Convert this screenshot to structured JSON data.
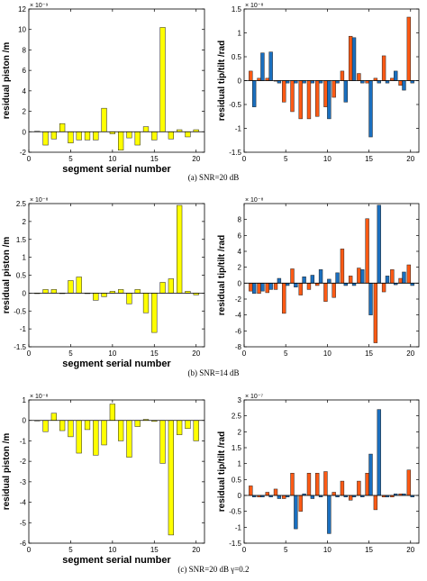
{
  "colors": {
    "yellow": "#ffff00",
    "orange": "#ff5a14",
    "blue": "#1a6fbf",
    "axis": "#000000"
  },
  "chart_data": [
    {
      "type": "bar",
      "row": 0,
      "col": 0,
      "xlabel": "segment serial number",
      "ylabel": "residual piston /m",
      "exponent": "× 10⁻⁹",
      "xlim": [
        0,
        21
      ],
      "xticks": [
        0,
        5,
        10,
        15,
        20
      ],
      "ylim": [
        -2,
        12
      ],
      "yticks": [
        -2,
        0,
        2,
        4,
        6,
        8,
        10,
        12
      ],
      "x": [
        1,
        2,
        3,
        4,
        5,
        6,
        7,
        8,
        9,
        10,
        11,
        12,
        13,
        14,
        15,
        16,
        17,
        18,
        19,
        20
      ],
      "series": [
        {
          "color": "yellow",
          "values": [
            0.05,
            -1.3,
            -0.7,
            0.8,
            -1.1,
            -0.8,
            -0.8,
            -0.8,
            2.3,
            -0.2,
            -1.8,
            -0.6,
            -1.3,
            0.5,
            -0.8,
            10.2,
            -0.7,
            0.2,
            -0.5,
            0.2
          ]
        }
      ]
    },
    {
      "type": "bar",
      "row": 0,
      "col": 1,
      "xlabel": "",
      "ylabel": "residual tip/tilt /rad",
      "exponent": "× 10⁻⁸",
      "xlim": [
        0,
        21
      ],
      "xticks": [
        0,
        5,
        10,
        15,
        20
      ],
      "ylim": [
        -1.5,
        1.5
      ],
      "yticks": [
        -1.5,
        -1,
        -0.5,
        0,
        0.5,
        1,
        1.5
      ],
      "x": [
        1,
        2,
        3,
        4,
        5,
        6,
        7,
        8,
        9,
        10,
        11,
        12,
        13,
        14,
        15,
        16,
        17,
        18,
        19,
        20
      ],
      "series": [
        {
          "color": "orange",
          "values": [
            0.2,
            0.05,
            0.05,
            0,
            -0.45,
            -0.65,
            -0.8,
            -0.8,
            -0.75,
            -0.55,
            -0.35,
            0.2,
            0.93,
            0.15,
            -0.05,
            0.05,
            0.52,
            0.05,
            -0.1,
            1.33
          ]
        },
        {
          "color": "blue",
          "values": [
            -0.55,
            0.58,
            0.6,
            -0.05,
            -0.05,
            -0.05,
            -0.05,
            -0.05,
            -0.05,
            -0.8,
            -0.05,
            -0.45,
            0.9,
            -0.05,
            -1.18,
            -0.05,
            -0.05,
            0.2,
            -0.2,
            -0.05
          ]
        }
      ]
    },
    {
      "type": "bar",
      "row": 1,
      "col": 0,
      "xlabel": "segment serial number",
      "ylabel": "residual piston /m",
      "exponent": "× 10⁻⁸",
      "xlim": [
        0,
        21
      ],
      "xticks": [
        0,
        5,
        10,
        15,
        20
      ],
      "ylim": [
        -1.5,
        2.5
      ],
      "yticks": [
        -1.5,
        -1,
        -0.5,
        0,
        0.5,
        1,
        1.5,
        2,
        2.5
      ],
      "x": [
        1,
        2,
        3,
        4,
        5,
        6,
        7,
        8,
        9,
        10,
        11,
        12,
        13,
        14,
        15,
        16,
        17,
        18,
        19,
        20
      ],
      "series": [
        {
          "color": "yellow",
          "values": [
            0,
            0.1,
            0.1,
            0,
            0.35,
            0.45,
            0,
            -0.2,
            -0.1,
            0.05,
            0.1,
            -0.3,
            0.1,
            -0.55,
            -1.1,
            0.3,
            0.4,
            2.45,
            0.05,
            -0.05
          ]
        }
      ]
    },
    {
      "type": "bar",
      "row": 1,
      "col": 1,
      "xlabel": "",
      "ylabel": "residual tip/tilt /rad",
      "exponent": "× 10⁻⁸",
      "xlim": [
        0,
        21
      ],
      "xticks": [
        0,
        5,
        10,
        15,
        20
      ],
      "ylim": [
        -8,
        10
      ],
      "yticks": [
        -8,
        -6,
        -4,
        -2,
        0,
        2,
        4,
        6,
        8
      ],
      "x": [
        1,
        2,
        3,
        4,
        5,
        6,
        7,
        8,
        9,
        10,
        11,
        12,
        13,
        14,
        15,
        16,
        17,
        18,
        19,
        20
      ],
      "series": [
        {
          "color": "orange",
          "values": [
            -1,
            -1.3,
            -1.2,
            -0.8,
            -3.8,
            1.8,
            -1.5,
            -0.8,
            -0.3,
            -2.3,
            -1.8,
            4.3,
            0.9,
            1.9,
            8.1,
            -7.5,
            -1.1,
            1.7,
            0.6,
            2.3
          ]
        },
        {
          "color": "blue",
          "values": [
            -1.3,
            -1,
            -0.8,
            0.6,
            -0.3,
            -0.5,
            0.8,
            1,
            1.7,
            0.5,
            1.3,
            -0.3,
            -0.3,
            1.7,
            -4,
            9.8,
            0.9,
            -0.2,
            1.4,
            -0.3
          ]
        }
      ]
    },
    {
      "type": "bar",
      "row": 2,
      "col": 0,
      "xlabel": "segment serial number",
      "ylabel": "residual piston /m",
      "exponent": "× 10⁻⁸",
      "xlim": [
        0,
        21
      ],
      "xticks": [
        0,
        5,
        10,
        15,
        20
      ],
      "ylim": [
        -6,
        1
      ],
      "yticks": [
        -6,
        -5,
        -4,
        -3,
        -2,
        -1,
        0,
        1
      ],
      "x": [
        1,
        2,
        3,
        4,
        5,
        6,
        7,
        8,
        9,
        10,
        11,
        12,
        13,
        14,
        15,
        16,
        17,
        18,
        19,
        20
      ],
      "series": [
        {
          "color": "yellow",
          "values": [
            0,
            -0.55,
            0.35,
            -0.5,
            -0.8,
            -1.6,
            -0.45,
            -1.7,
            -1.2,
            0.8,
            -1,
            -1.8,
            -0.3,
            0.05,
            -0.05,
            -2.1,
            -5.6,
            -0.7,
            -0.4,
            -1
          ]
        }
      ]
    },
    {
      "type": "bar",
      "row": 2,
      "col": 1,
      "xlabel": "",
      "ylabel": "residual tip/tilt /rad",
      "exponent": "× 10⁻⁷",
      "xlim": [
        0,
        21
      ],
      "xticks": [
        0,
        5,
        10,
        15,
        20
      ],
      "ylim": [
        -1.5,
        3
      ],
      "yticks": [
        -1.5,
        -1,
        -0.5,
        0,
        0.5,
        1,
        1.5,
        2,
        2.5,
        3
      ],
      "x": [
        1,
        2,
        3,
        4,
        5,
        6,
        7,
        8,
        9,
        10,
        11,
        12,
        13,
        14,
        15,
        16,
        17,
        18,
        19,
        20
      ],
      "series": [
        {
          "color": "orange",
          "values": [
            0.3,
            -0.05,
            0.1,
            0.2,
            -0.1,
            0.7,
            -0.5,
            0.7,
            0.7,
            0.75,
            0.1,
            0.45,
            -0.15,
            0.45,
            0.7,
            -0.45,
            -0.05,
            -0.05,
            0.05,
            0.8
          ]
        },
        {
          "color": "blue",
          "values": [
            -0.05,
            -0.05,
            -0.05,
            -0.1,
            -0.05,
            -1.05,
            0.05,
            -0.1,
            -0.05,
            -1.2,
            -0.05,
            -0.05,
            -0.05,
            -0.05,
            1.3,
            2.7,
            -0.05,
            0.05,
            0.05,
            -0.05
          ]
        }
      ]
    }
  ],
  "captions": [
    "(a) SNR=20 dB",
    "(b) SNR=14 dB",
    "(c) SNR=20 dB   γ=0.2"
  ]
}
